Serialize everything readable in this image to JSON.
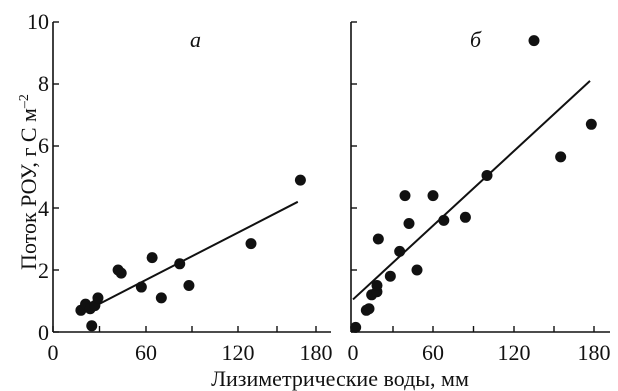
{
  "figure": {
    "ylabel_main": "Поток РОУ, г С м",
    "ylabel_exp": "–2",
    "xlabel": "Лизиметрические воды, мм",
    "y_ticks": [
      "0",
      "2",
      "4",
      "6",
      "8",
      "10"
    ],
    "x_ticks": [
      "0",
      "60",
      "120",
      "180"
    ]
  },
  "chart_data": [
    {
      "type": "scatter",
      "panel_label": "а",
      "xlabel": "Лизиметрические воды, мм",
      "ylabel": "Поток РОУ, г С м–2",
      "xlim": [
        0,
        180
      ],
      "ylim": [
        0,
        10
      ],
      "grid": false,
      "points": [
        {
          "x": 18,
          "y": 0.7
        },
        {
          "x": 21,
          "y": 0.9
        },
        {
          "x": 24,
          "y": 0.75
        },
        {
          "x": 25,
          "y": 0.2
        },
        {
          "x": 27,
          "y": 0.85
        },
        {
          "x": 29,
          "y": 1.1
        },
        {
          "x": 42,
          "y": 2.0
        },
        {
          "x": 44,
          "y": 1.9
        },
        {
          "x": 57,
          "y": 1.45
        },
        {
          "x": 64,
          "y": 2.4
        },
        {
          "x": 70,
          "y": 1.1
        },
        {
          "x": 82,
          "y": 2.2
        },
        {
          "x": 88,
          "y": 1.5
        },
        {
          "x": 130,
          "y": 2.85
        },
        {
          "x": 168,
          "y": 4.9
        }
      ],
      "trend_line": {
        "x": [
          18,
          166
        ],
        "y": [
          0.6,
          4.2
        ]
      }
    },
    {
      "type": "scatter",
      "panel_label": "б",
      "xlabel": "Лизиметрические воды, мм",
      "ylabel": "Поток РОУ, г С м–2",
      "xlim": [
        0,
        180
      ],
      "ylim": [
        0,
        10
      ],
      "grid": false,
      "points": [
        {
          "x": 2,
          "y": 0.15
        },
        {
          "x": 10,
          "y": 0.7
        },
        {
          "x": 12,
          "y": 0.75
        },
        {
          "x": 14,
          "y": 1.2
        },
        {
          "x": 18,
          "y": 1.3
        },
        {
          "x": 18,
          "y": 1.5
        },
        {
          "x": 19,
          "y": 3.0
        },
        {
          "x": 28,
          "y": 1.8
        },
        {
          "x": 35,
          "y": 2.6
        },
        {
          "x": 39,
          "y": 4.4
        },
        {
          "x": 42,
          "y": 3.5
        },
        {
          "x": 48,
          "y": 2.0
        },
        {
          "x": 60,
          "y": 4.4
        },
        {
          "x": 68,
          "y": 3.6
        },
        {
          "x": 84,
          "y": 3.7
        },
        {
          "x": 100,
          "y": 5.05
        },
        {
          "x": 135,
          "y": 9.4
        },
        {
          "x": 155,
          "y": 5.65
        },
        {
          "x": 178,
          "y": 6.7
        }
      ],
      "trend_line": {
        "x": [
          0,
          177
        ],
        "y": [
          1.05,
          8.1
        ]
      }
    }
  ]
}
